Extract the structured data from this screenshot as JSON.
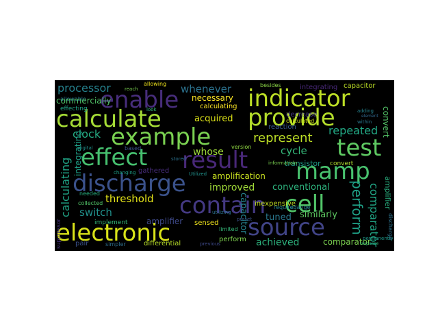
{
  "word_cloud": {
    "background": "#000000",
    "words": [
      {
        "text": "enable",
        "color": "#472d7b"
      },
      {
        "text": "indicator",
        "color": "#bddf26"
      },
      {
        "text": "calculate",
        "color": "#a5db36"
      },
      {
        "text": "provide",
        "color": "#b5de2b"
      },
      {
        "text": "example",
        "color": "#7ad151"
      },
      {
        "text": "test",
        "color": "#5ec962"
      },
      {
        "text": "effect",
        "color": "#46c06f"
      },
      {
        "text": "result",
        "color": "#482878"
      },
      {
        "text": "mamp",
        "color": "#48c16e"
      },
      {
        "text": "discharge",
        "color": "#3b528b"
      },
      {
        "text": "contain",
        "color": "#443983"
      },
      {
        "text": "cell",
        "color": "#52c569"
      },
      {
        "text": "electronic",
        "color": "#d8e219"
      },
      {
        "text": "source",
        "color": "#414487"
      },
      {
        "text": "processor",
        "color": "#26828e"
      },
      {
        "text": "whenever",
        "color": "#2c728e"
      },
      {
        "text": "necessary",
        "color": "#fde725"
      },
      {
        "text": "acquired",
        "color": "#dde318"
      },
      {
        "text": "represent",
        "color": "#bddf26"
      },
      {
        "text": "repeated",
        "color": "#22a884"
      },
      {
        "text": "clock",
        "color": "#25ab82"
      },
      {
        "text": "cycle",
        "color": "#35b779"
      },
      {
        "text": "whose",
        "color": "#9fda3a"
      },
      {
        "text": "transistor",
        "color": "#1f9e89"
      },
      {
        "text": "amplification",
        "color": "#c8e020"
      },
      {
        "text": "improved",
        "color": "#a0da39"
      },
      {
        "text": "conventional",
        "color": "#2db27d"
      },
      {
        "text": "threshold",
        "color": "#e5e419"
      },
      {
        "text": "switch",
        "color": "#21918c"
      },
      {
        "text": "tuned",
        "color": "#2a788e"
      },
      {
        "text": "similarly",
        "color": "#5ec962"
      },
      {
        "text": "achieved",
        "color": "#2db27d"
      },
      {
        "text": "differential",
        "color": "#b8de29"
      },
      {
        "text": "perform",
        "color": "#1fa187"
      },
      {
        "text": "comparator",
        "color": "#21a685"
      },
      {
        "text": "calculating",
        "color": "#20a486"
      },
      {
        "text": "integrating",
        "color": "#1fa088"
      },
      {
        "text": "capacitor",
        "color": "#26828e"
      },
      {
        "text": "convert",
        "color": "#54c568"
      },
      {
        "text": "amplifier",
        "color": "#29af7f"
      },
      {
        "text": "sensed",
        "color": "#52c569"
      },
      {
        "text": "pair",
        "color": "#7fd34e"
      },
      {
        "text": "simpler",
        "color": "#7cd250"
      },
      {
        "text": "inexpensive",
        "color": "#fde725"
      },
      {
        "text": "effecting",
        "color": "#482878"
      },
      {
        "text": "allowable",
        "color": "#bddf26"
      },
      {
        "text": "commercially",
        "color": "#b0dd2f"
      },
      {
        "text": "implement",
        "color": "#3e4989"
      },
      {
        "text": "needed",
        "color": "#f1e51d"
      },
      {
        "text": "collected",
        "color": "#3b528b"
      },
      {
        "text": "required",
        "color": "#2e6e8e"
      },
      {
        "text": "change",
        "color": "#c2df23"
      },
      {
        "text": "reaction",
        "color": "#20a386"
      },
      {
        "text": "decrease",
        "color": "#2a788e"
      },
      {
        "text": "besides",
        "color": "#35b779"
      },
      {
        "text": "allowing",
        "color": "#29af7f"
      },
      {
        "text": "reach",
        "color": "#52c569"
      },
      {
        "text": "preset",
        "color": "#25838e"
      },
      {
        "text": "limited",
        "color": "#277f8e"
      },
      {
        "text": "utilizing",
        "color": "#38588c"
      },
      {
        "text": "Utilized",
        "color": "#443983"
      },
      {
        "text": "version",
        "color": "#8bd646"
      },
      {
        "text": "calculated",
        "color": "#f1e51d"
      },
      {
        "text": "adding",
        "color": "#7ad151"
      },
      {
        "text": "permanently",
        "color": "#3b528b"
      },
      {
        "text": "within",
        "color": "#35b779"
      },
      {
        "text": "digital",
        "color": "#2c728e"
      },
      {
        "text": "based",
        "color": "#21918c"
      },
      {
        "text": "look",
        "color": "#90d743"
      },
      {
        "text": "informatialn",
        "color": "#d2e21b"
      },
      {
        "text": "stored",
        "color": "#26828e"
      },
      {
        "text": "gathered",
        "color": "#1f9a8a"
      },
      {
        "text": "changing",
        "color": "#2a788e"
      },
      {
        "text": "across",
        "color": "#21918c"
      },
      {
        "text": "tool",
        "color": "#3b528b"
      },
      {
        "text": "error",
        "color": "#35b779"
      },
      {
        "text": "basis",
        "color": "#7ad151"
      },
      {
        "text": "analog",
        "color": "#2c728e"
      },
      {
        "text": "amplifying",
        "color": "#472d7b"
      },
      {
        "text": "previous",
        "color": "#1fa088"
      },
      {
        "text": "discharge",
        "color": "#3e4989"
      },
      {
        "text": "suppressor",
        "color": "#2c728e"
      },
      {
        "text": "readout",
        "color": "#46337f"
      },
      {
        "text": "element",
        "color": "#31688e"
      },
      {
        "text": "response",
        "color": "#35b779"
      }
    ]
  }
}
